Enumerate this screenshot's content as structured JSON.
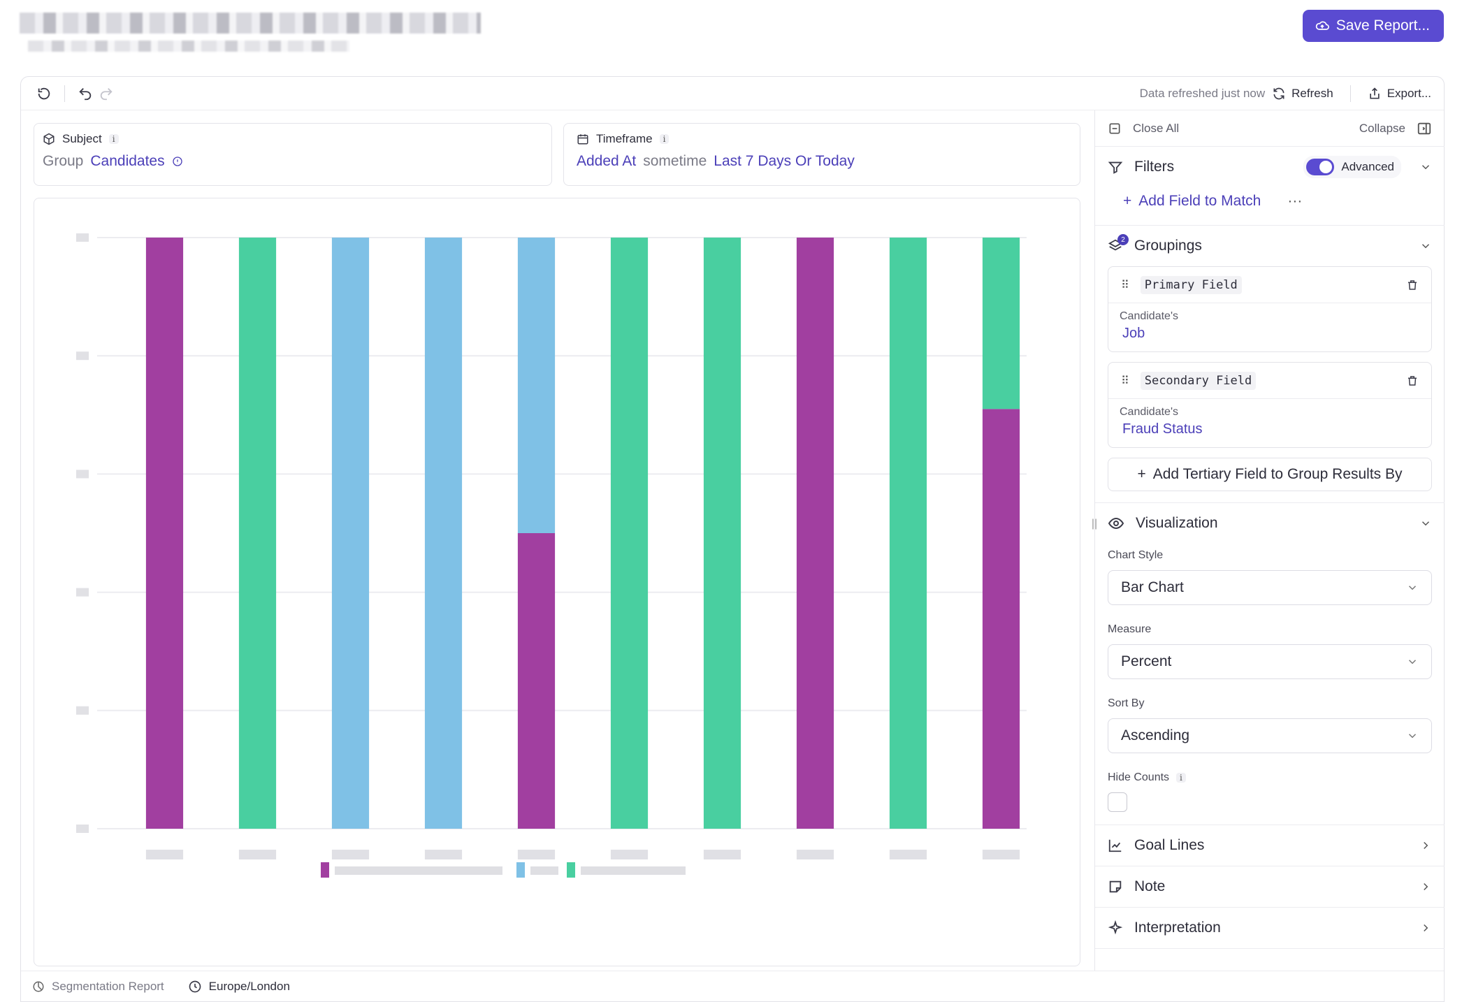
{
  "header": {
    "save_label": "Save Report..."
  },
  "toolbar": {
    "refreshed_text": "Data refreshed just now",
    "refresh_label": "Refresh",
    "export_label": "Export..."
  },
  "subject": {
    "label": "Subject",
    "info": "i",
    "group_word": "Group",
    "group_value": "Candidates"
  },
  "timeframe": {
    "label": "Timeframe",
    "info": "i",
    "field": "Added At",
    "connector": "sometime",
    "range": "Last 7 Days Or Today"
  },
  "sidebar": {
    "close_all": "Close All",
    "collapse": "Collapse",
    "filters": {
      "title": "Filters",
      "advanced_label": "Advanced",
      "add_field": "Add Field to Match",
      "more": "···"
    },
    "groupings": {
      "title": "Groupings",
      "count": "2",
      "primary": {
        "label": "Primary Field",
        "owner": "Candidate's",
        "value": "Job"
      },
      "secondary": {
        "label": "Secondary Field",
        "owner": "Candidate's",
        "value": "Fraud Status"
      },
      "add_tertiary": "Add Tertiary Field to Group Results By"
    },
    "visualization": {
      "title": "Visualization",
      "chart_style_label": "Chart Style",
      "chart_style_value": "Bar Chart",
      "measure_label": "Measure",
      "measure_value": "Percent",
      "sort_label": "Sort By",
      "sort_value": "Ascending",
      "hide_counts_label": "Hide Counts",
      "hide_counts_info": "i"
    },
    "goal_lines": "Goal Lines",
    "note": "Note",
    "interpretation": "Interpretation"
  },
  "footer": {
    "report_type": "Segmentation Report",
    "timezone": "Europe/London"
  },
  "colors": {
    "accent": "#5a4bd1",
    "series_purple": "#a13fa0",
    "series_green": "#49cfa0",
    "series_blue": "#7fc1e6"
  },
  "chart_data": {
    "type": "bar",
    "stacked": true,
    "ylim": [
      0,
      100
    ],
    "grid": true,
    "legend": "bottom",
    "categories": [
      "",
      "",
      "",
      "",
      "",
      "",
      "",
      "",
      "",
      ""
    ],
    "series": [
      {
        "color": "#a13fa0",
        "values": [
          100,
          0,
          0,
          0,
          50,
          0,
          0,
          100,
          0,
          71
        ]
      },
      {
        "color": "#7fc1e6",
        "values": [
          0,
          0,
          100,
          100,
          50,
          0,
          0,
          0,
          0,
          0
        ]
      },
      {
        "color": "#49cfa0",
        "values": [
          0,
          100,
          0,
          0,
          0,
          100,
          100,
          0,
          100,
          29
        ]
      }
    ]
  }
}
